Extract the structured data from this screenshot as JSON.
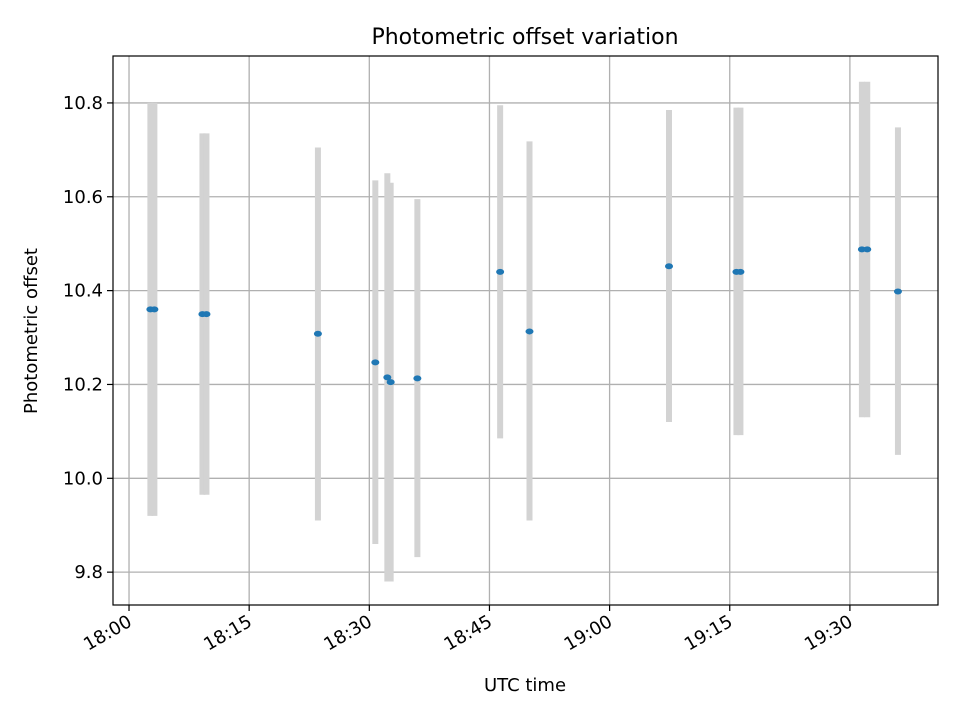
{
  "chart_data": {
    "type": "scatter",
    "title": "Photometric offset variation",
    "xlabel": "UTC time",
    "ylabel": "Photometric offset",
    "x_ticks": [
      "18:00",
      "18:15",
      "18:30",
      "18:45",
      "19:00",
      "19:15",
      "19:30"
    ],
    "y_ticks": [
      "9.8",
      "10.0",
      "10.2",
      "10.4",
      "10.6",
      "10.8"
    ],
    "xlim": [
      "17:58",
      "19:41"
    ],
    "ylim": [
      9.73,
      10.9
    ],
    "grid": true,
    "colors": {
      "point": "#1f77b4",
      "errorbar": "#d3d3d3",
      "grid": "#b0b0b0"
    },
    "points": [
      {
        "time": "18:02:40",
        "y": 10.36,
        "err_low": 9.92,
        "err_high": 10.8
      },
      {
        "time": "18:03:10",
        "y": 10.36,
        "err_low": 9.92,
        "err_high": 10.8
      },
      {
        "time": "18:09:10",
        "y": 10.35,
        "err_low": 9.965,
        "err_high": 10.735
      },
      {
        "time": "18:09:40",
        "y": 10.35,
        "err_low": 9.965,
        "err_high": 10.735
      },
      {
        "time": "18:23:35",
        "y": 10.308,
        "err_low": 9.91,
        "err_high": 10.705
      },
      {
        "time": "18:30:45",
        "y": 10.247,
        "err_low": 9.86,
        "err_high": 10.635
      },
      {
        "time": "18:32:15",
        "y": 10.215,
        "err_low": 9.78,
        "err_high": 10.65
      },
      {
        "time": "18:32:40",
        "y": 10.205,
        "err_low": 9.78,
        "err_high": 10.63
      },
      {
        "time": "18:36:00",
        "y": 10.213,
        "err_low": 9.832,
        "err_high": 10.595
      },
      {
        "time": "18:46:20",
        "y": 10.44,
        "err_low": 10.085,
        "err_high": 10.795
      },
      {
        "time": "18:50:00",
        "y": 10.313,
        "err_low": 9.91,
        "err_high": 10.718
      },
      {
        "time": "19:07:25",
        "y": 10.452,
        "err_low": 10.12,
        "err_high": 10.785
      },
      {
        "time": "19:15:50",
        "y": 10.44,
        "err_low": 10.092,
        "err_high": 10.79
      },
      {
        "time": "19:16:20",
        "y": 10.44,
        "err_low": 10.092,
        "err_high": 10.79
      },
      {
        "time": "19:31:30",
        "y": 10.488,
        "err_low": 10.13,
        "err_high": 10.845
      },
      {
        "time": "19:32:10",
        "y": 10.488,
        "err_low": 10.13,
        "err_high": 10.845
      },
      {
        "time": "19:36:00",
        "y": 10.398,
        "err_low": 10.05,
        "err_high": 10.748
      }
    ]
  }
}
